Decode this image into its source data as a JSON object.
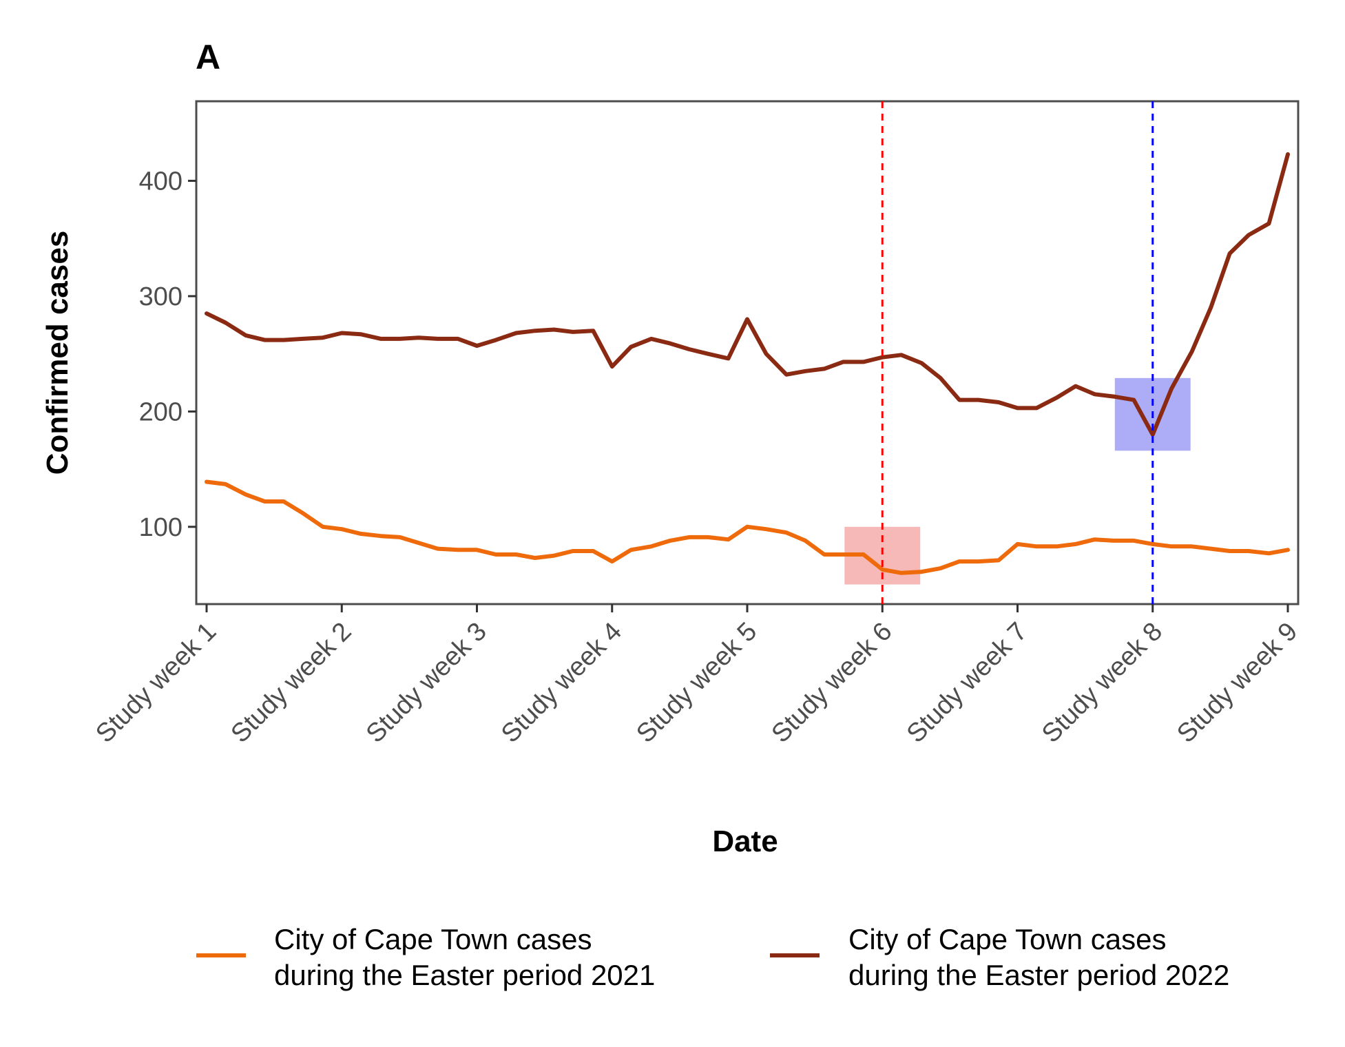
{
  "chart_data": {
    "type": "line",
    "panel_label": "A",
    "title": "",
    "xlabel": "Date",
    "ylabel": "Confirmed cases",
    "xlim": [
      1,
      9
    ],
    "ylim": [
      33,
      469
    ],
    "y_ticks": [
      100,
      200,
      300,
      400
    ],
    "x_ticks": [
      1,
      2,
      3,
      4,
      5,
      6,
      7,
      8,
      9
    ],
    "x_tick_labels": [
      "Study week 1",
      "Study week 2",
      "Study week 3",
      "Study week 4",
      "Study week 5",
      "Study week 6",
      "Study week 7",
      "Study week 8",
      "Study week 9"
    ],
    "grid": false,
    "legend_position": "bottom",
    "series": [
      {
        "name": "City of Cape Town cases during the Easter period 2021",
        "legend_lines": [
          "City of Cape Town cases",
          "during the Easter period 2021"
        ],
        "color": "#ee6a0a",
        "x": [
          1,
          1.14,
          1.29,
          1.43,
          1.57,
          1.71,
          1.86,
          2,
          2.14,
          2.29,
          2.43,
          2.57,
          2.71,
          2.86,
          3,
          3.14,
          3.29,
          3.43,
          3.57,
          3.71,
          3.86,
          4,
          4.14,
          4.29,
          4.43,
          4.57,
          4.71,
          4.86,
          5,
          5.14,
          5.29,
          5.43,
          5.57,
          5.71,
          5.86,
          6,
          6.14,
          6.29,
          6.43,
          6.57,
          6.71,
          6.86,
          7,
          7.14,
          7.29,
          7.43,
          7.57,
          7.71,
          7.86,
          8,
          8.14,
          8.29,
          8.43,
          8.57,
          8.71,
          8.86,
          9
        ],
        "values": [
          139,
          137,
          128,
          122,
          122,
          112,
          100,
          98,
          94,
          92,
          91,
          86,
          81,
          80,
          80,
          76,
          76,
          73,
          75,
          79,
          79,
          70,
          80,
          83,
          88,
          91,
          91,
          89,
          100,
          98,
          95,
          88,
          76,
          76,
          76,
          63,
          60,
          61,
          64,
          70,
          70,
          71,
          85,
          83,
          83,
          85,
          89,
          88,
          88,
          85,
          83,
          83,
          81,
          79,
          79,
          77,
          80
        ]
      },
      {
        "name": "City of Cape Town cases during the Easter period 2022",
        "legend_lines": [
          "City of Cape Town cases",
          "during the Easter period 2022"
        ],
        "color": "#8b2a12",
        "x": [
          1,
          1.14,
          1.29,
          1.43,
          1.57,
          1.71,
          1.86,
          2,
          2.14,
          2.29,
          2.43,
          2.57,
          2.71,
          2.86,
          3,
          3.14,
          3.29,
          3.43,
          3.57,
          3.71,
          3.86,
          4,
          4.14,
          4.29,
          4.43,
          4.57,
          4.71,
          4.86,
          5,
          5.14,
          5.29,
          5.43,
          5.57,
          5.71,
          5.86,
          6,
          6.14,
          6.29,
          6.43,
          6.57,
          6.71,
          6.86,
          7,
          7.14,
          7.29,
          7.43,
          7.57,
          7.71,
          7.86,
          8,
          8.14,
          8.29,
          8.43,
          8.57,
          8.71,
          8.86,
          9
        ],
        "values": [
          285,
          277,
          266,
          262,
          262,
          263,
          264,
          268,
          267,
          263,
          263,
          264,
          263,
          263,
          257,
          262,
          268,
          270,
          271,
          269,
          270,
          239,
          256,
          263,
          259,
          254,
          250,
          246,
          280,
          250,
          232,
          235,
          237,
          243,
          243,
          247,
          249,
          242,
          229,
          210,
          210,
          208,
          203,
          203,
          212,
          222,
          215,
          213,
          210,
          180,
          220,
          252,
          290,
          337,
          353,
          363,
          423
        ]
      }
    ],
    "annotations": [
      {
        "type": "vline",
        "x": 6,
        "color": "#ff0000",
        "style": "dashed"
      },
      {
        "type": "vline",
        "x": 8,
        "color": "#0000ff",
        "style": "dashed"
      },
      {
        "type": "highlight",
        "x_range": [
          5.72,
          6.28
        ],
        "y_range": [
          50,
          100
        ],
        "color": "#f4a0a0"
      },
      {
        "type": "highlight",
        "x_range": [
          7.72,
          8.28
        ],
        "y_range": [
          166,
          229
        ],
        "color": "#9090f4"
      }
    ]
  }
}
